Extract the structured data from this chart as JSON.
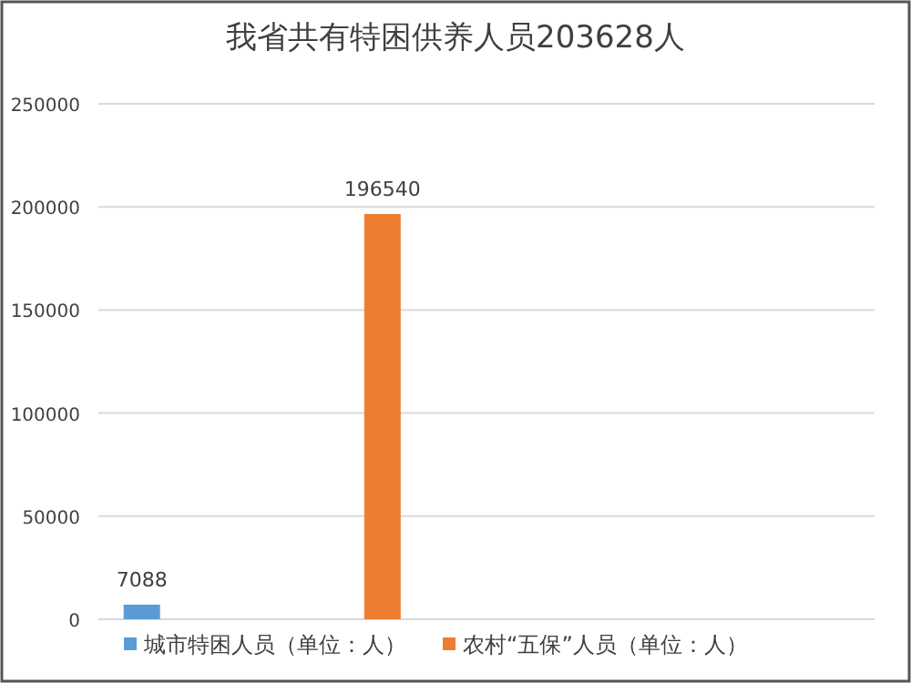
{
  "chart_data": {
    "type": "bar",
    "title": "我省共有特困供养人员203628人",
    "categories": [
      null
    ],
    "series": [
      {
        "name": "城市特困人员（单位：人）",
        "color": "#5b9bd5",
        "values": [
          7088
        ]
      },
      {
        "name": "农村“五保”人员（单位：人）",
        "color": "#ed7d31",
        "values": [
          196540
        ]
      }
    ],
    "ylim": [
      0,
      250000
    ],
    "yticks": [
      0,
      50000,
      100000,
      150000,
      200000,
      250000
    ],
    "grid": "y",
    "legend": "bottom",
    "data_labels": true
  }
}
